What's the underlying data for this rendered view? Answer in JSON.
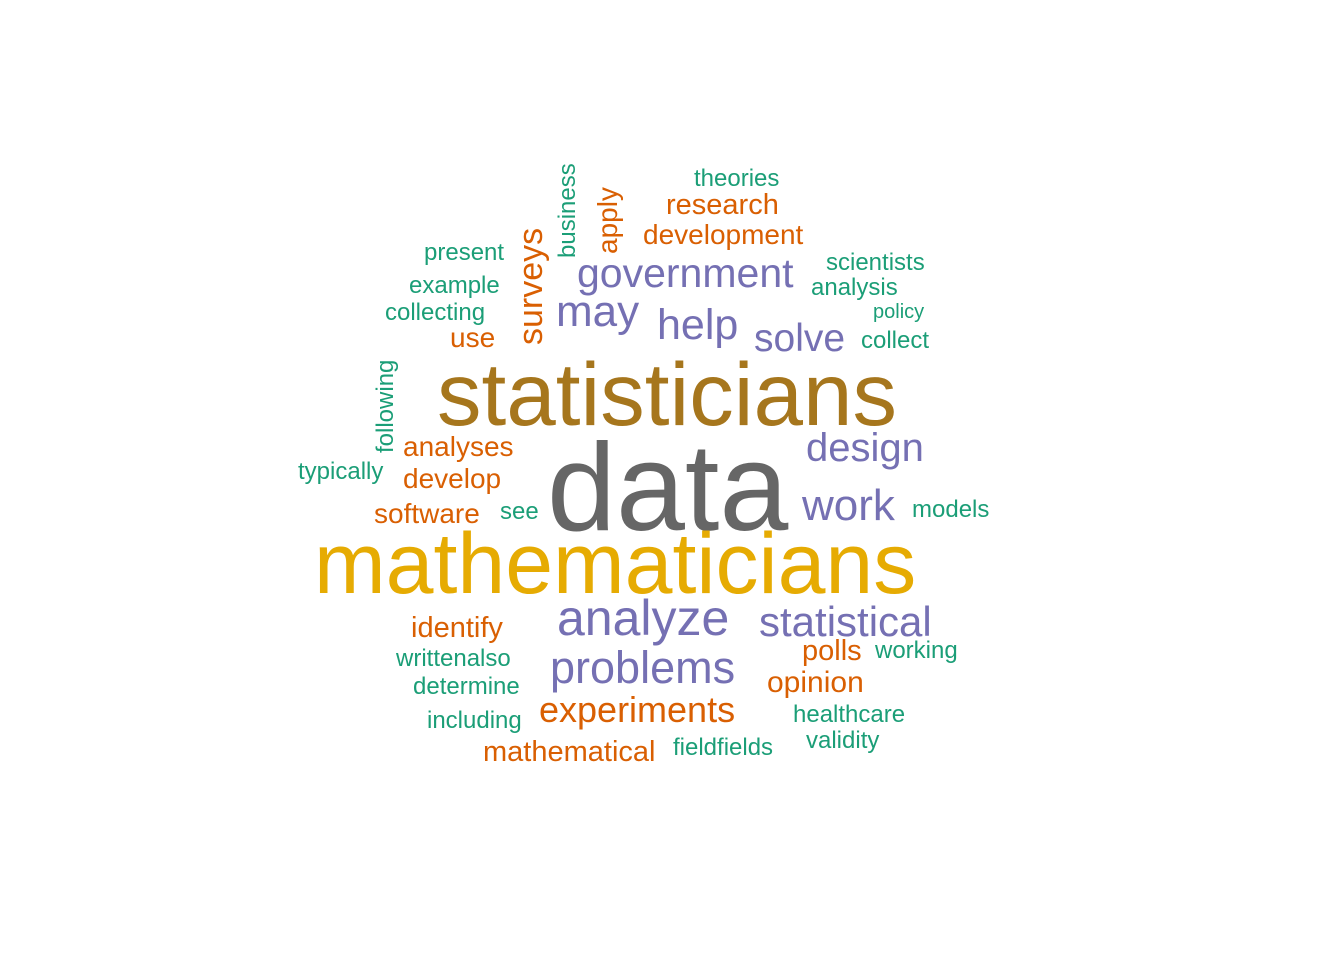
{
  "colors": {
    "teal": "#1b9e77",
    "orange": "#d95f02",
    "purple": "#7570b3",
    "gold": "#e6ab02",
    "brown": "#a6761d",
    "grey": "#666666"
  },
  "words": [
    {
      "text": "data",
      "color": "grey"
    },
    {
      "text": "mathematicians",
      "color": "gold"
    },
    {
      "text": "statisticians",
      "color": "brown"
    },
    {
      "text": "analyze",
      "color": "purple"
    },
    {
      "text": "problems",
      "color": "purple"
    },
    {
      "text": "government",
      "color": "purple"
    },
    {
      "text": "statistical",
      "color": "purple"
    },
    {
      "text": "work",
      "color": "purple"
    },
    {
      "text": "design",
      "color": "purple"
    },
    {
      "text": "may",
      "color": "purple"
    },
    {
      "text": "help",
      "color": "purple"
    },
    {
      "text": "solve",
      "color": "purple"
    },
    {
      "text": "surveys",
      "color": "orange"
    },
    {
      "text": "experiments",
      "color": "orange"
    },
    {
      "text": "development",
      "color": "orange"
    },
    {
      "text": "research",
      "color": "orange"
    },
    {
      "text": "apply",
      "color": "orange"
    },
    {
      "text": "analyses",
      "color": "orange"
    },
    {
      "text": "develop",
      "color": "orange"
    },
    {
      "text": "software",
      "color": "orange"
    },
    {
      "text": "use",
      "color": "orange"
    },
    {
      "text": "identify",
      "color": "orange"
    },
    {
      "text": "polls",
      "color": "orange"
    },
    {
      "text": "opinion",
      "color": "orange"
    },
    {
      "text": "mathematical",
      "color": "orange"
    },
    {
      "text": "theories",
      "color": "teal"
    },
    {
      "text": "business",
      "color": "teal"
    },
    {
      "text": "present",
      "color": "teal"
    },
    {
      "text": "example",
      "color": "teal"
    },
    {
      "text": "collecting",
      "color": "teal"
    },
    {
      "text": "scientists",
      "color": "teal"
    },
    {
      "text": "analysis",
      "color": "teal"
    },
    {
      "text": "policy",
      "color": "teal"
    },
    {
      "text": "collect",
      "color": "teal"
    },
    {
      "text": "following",
      "color": "teal"
    },
    {
      "text": "typically",
      "color": "teal"
    },
    {
      "text": "see",
      "color": "teal"
    },
    {
      "text": "models",
      "color": "teal"
    },
    {
      "text": "writtenalso",
      "color": "teal"
    },
    {
      "text": "working",
      "color": "teal"
    },
    {
      "text": "determine",
      "color": "teal"
    },
    {
      "text": "including",
      "color": "teal"
    },
    {
      "text": "healthcare",
      "color": "teal"
    },
    {
      "text": "validity",
      "color": "teal"
    },
    {
      "text": "fieldfields",
      "color": "teal"
    }
  ]
}
